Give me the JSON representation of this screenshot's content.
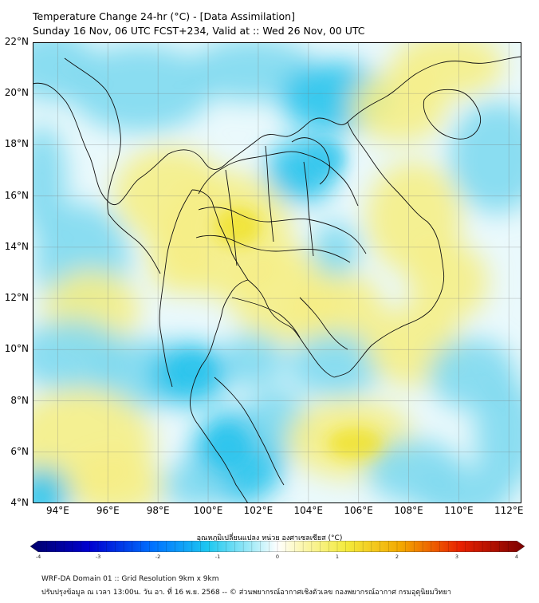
{
  "header": {
    "title_line1": "Temperature Change 24-hr (°C) - [Data Assimilation]",
    "title_line2": "Sunday 16 Nov, 06 UTC FCST+234, Valid at :: Wed 26 Nov, 00 UTC"
  },
  "map": {
    "lat_labels": [
      "22°N",
      "20°N",
      "18°N",
      "16°N",
      "14°N",
      "12°N",
      "10°N",
      "8°N",
      "6°N",
      "4°N"
    ],
    "lon_labels": [
      "94°E",
      "96°E",
      "98°E",
      "100°E",
      "102°E",
      "104°E",
      "106°E",
      "108°E",
      "110°E",
      "112°E"
    ],
    "lat_range": [
      4,
      22
    ],
    "lon_range": [
      93,
      112.5
    ]
  },
  "colorbar": {
    "title": "อุณหภูมิเปลี่ยนแปลง หน่วย องศาเซลเซียส (°C)",
    "ticks": [
      "-4",
      "-3",
      "-2",
      "-1",
      "0",
      "1",
      "2",
      "3",
      "4"
    ],
    "range": [
      -4,
      4
    ]
  },
  "footer": {
    "line1": "WRF-DA Domain 01 :: Grid Resolution 9km x 9km",
    "line2": "ปรับปรุงข้อมูล ณ เวลา 13:00น. วัน อา. ที่ 16 พ.ย. 2568 -- © ส่วนพยากรณ์อากาศเชิงตัวเลข กองพยากรณ์อากาศ กรมอุตุนิยมวิทยา"
  },
  "colors": {
    "cool": "#7fd9f0",
    "cool_strong": "#27c3ec",
    "warm": "#f5ee86",
    "warm_strong": "#f0e020",
    "neutral": "#ffffff",
    "cold_end": "#000080",
    "hot_end": "#7a0000"
  }
}
